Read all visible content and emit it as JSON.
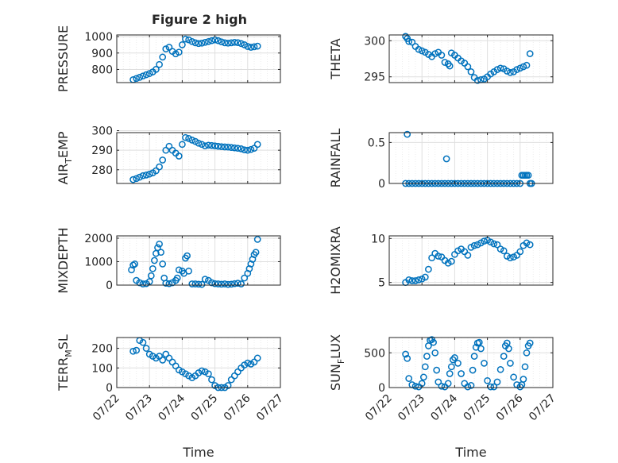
{
  "figure_title": "Figure 2 high",
  "marker_color": "#0072BD",
  "chart_data": [
    {
      "type": "scatter",
      "ylabel": "PRESSURE",
      "xlabel": "",
      "title": "Figure 2 high",
      "ylim": [
        720,
        1010
      ],
      "yticks": [
        800,
        900,
        1000
      ],
      "xlim": [
        0,
        5
      ],
      "xticks": [
        "07/22",
        "07/23",
        "07/24",
        "07/25",
        "07/26",
        "07/27"
      ],
      "xtick_labels_shown": false,
      "grid": true,
      "x": [
        0.5,
        0.6,
        0.7,
        0.8,
        0.9,
        1.0,
        1.1,
        1.2,
        1.3,
        1.4,
        1.5,
        1.6,
        1.7,
        1.8,
        1.9,
        2.0,
        2.1,
        2.2,
        2.3,
        2.4,
        2.5,
        2.6,
        2.7,
        2.8,
        2.9,
        3.0,
        3.1,
        3.2,
        3.3,
        3.4,
        3.5,
        3.6,
        3.7,
        3.8,
        3.9,
        4.0,
        4.1,
        4.2,
        4.3
      ],
      "y": [
        738,
        745,
        752,
        760,
        768,
        775,
        785,
        800,
        830,
        875,
        925,
        935,
        910,
        895,
        905,
        950,
        985,
        980,
        970,
        962,
        958,
        960,
        965,
        970,
        975,
        980,
        975,
        968,
        962,
        960,
        962,
        965,
        963,
        958,
        950,
        940,
        935,
        938,
        942
      ]
    },
    {
      "type": "scatter",
      "ylabel": "THETA",
      "xlabel": "",
      "ylim": [
        294.2,
        300.8
      ],
      "yticks": [
        295,
        300
      ],
      "xlim": [
        0,
        5
      ],
      "xticks": [
        "07/22",
        "07/23",
        "07/24",
        "07/25",
        "07/26",
        "07/27"
      ],
      "xtick_labels_shown": false,
      "grid": true,
      "x": [
        0.5,
        0.55,
        0.6,
        0.7,
        0.8,
        0.9,
        1.0,
        1.1,
        1.2,
        1.3,
        1.4,
        1.5,
        1.6,
        1.7,
        1.8,
        1.85,
        1.9,
        2.0,
        2.1,
        2.2,
        2.3,
        2.4,
        2.5,
        2.6,
        2.7,
        2.8,
        2.9,
        3.0,
        3.1,
        3.2,
        3.3,
        3.4,
        3.5,
        3.6,
        3.7,
        3.8,
        3.9,
        4.0,
        4.1,
        4.2,
        4.3
      ],
      "y": [
        300.6,
        300.3,
        299.9,
        299.8,
        299.2,
        298.8,
        298.6,
        298.4,
        298.1,
        297.8,
        298.2,
        298.4,
        298.0,
        297.0,
        296.8,
        296.5,
        298.3,
        298.0,
        297.6,
        297.2,
        296.9,
        296.4,
        295.7,
        294.9,
        294.5,
        294.6,
        294.7,
        295.0,
        295.4,
        295.7,
        296.0,
        296.2,
        296.1,
        295.8,
        295.6,
        295.7,
        296.0,
        296.2,
        296.4,
        296.6,
        298.2
      ]
    },
    {
      "type": "scatter",
      "ylabel": "AIR_TEMP",
      "xlabel": "",
      "ylim": [
        273,
        299
      ],
      "yticks": [
        280,
        290,
        300
      ],
      "xlim": [
        0,
        5
      ],
      "xticks": [
        "07/22",
        "07/23",
        "07/24",
        "07/25",
        "07/26",
        "07/27"
      ],
      "xtick_labels_shown": false,
      "grid": true,
      "x": [
        0.5,
        0.6,
        0.7,
        0.8,
        0.9,
        1.0,
        1.1,
        1.2,
        1.3,
        1.4,
        1.5,
        1.6,
        1.7,
        1.8,
        1.9,
        2.0,
        2.1,
        2.2,
        2.3,
        2.4,
        2.5,
        2.6,
        2.7,
        2.8,
        2.9,
        3.0,
        3.1,
        3.2,
        3.3,
        3.4,
        3.5,
        3.6,
        3.7,
        3.8,
        3.9,
        4.0,
        4.1,
        4.2,
        4.3
      ],
      "y": [
        275,
        275.5,
        276.2,
        277,
        277.3,
        277.8,
        278.4,
        279.5,
        281.5,
        285,
        290,
        292,
        290,
        288.5,
        287,
        293,
        296.5,
        296,
        295.2,
        294.5,
        293.6,
        293,
        292.2,
        292.6,
        292.4,
        292.2,
        292,
        291.8,
        291.7,
        291.6,
        291.4,
        291.2,
        291,
        290.7,
        290.2,
        290,
        290.4,
        291,
        293
      ]
    },
    {
      "type": "scatter",
      "ylabel": "RAINFALL",
      "xlabel": "",
      "ylim": [
        0,
        0.62
      ],
      "yticks": [
        0,
        0.5
      ],
      "xlim": [
        0,
        5
      ],
      "xticks": [
        "07/22",
        "07/23",
        "07/24",
        "07/25",
        "07/26",
        "07/27"
      ],
      "xtick_labels_shown": false,
      "grid": true,
      "x": [
        0.5,
        0.6,
        0.7,
        0.8,
        0.9,
        1.0,
        1.1,
        1.2,
        1.3,
        1.4,
        1.5,
        1.6,
        1.7,
        1.8,
        1.9,
        2.0,
        2.1,
        2.2,
        2.3,
        2.4,
        2.5,
        2.6,
        2.7,
        2.8,
        2.9,
        3.0,
        3.1,
        3.2,
        3.3,
        3.4,
        3.5,
        3.6,
        3.7,
        3.8,
        3.9,
        4.0,
        4.05,
        4.1,
        4.15,
        4.2,
        4.25,
        4.3,
        4.35,
        0.55,
        1.75
      ],
      "y": [
        0,
        0,
        0,
        0,
        0,
        0,
        0,
        0,
        0,
        0,
        0,
        0,
        0,
        0,
        0,
        0,
        0,
        0,
        0,
        0,
        0,
        0,
        0,
        0,
        0,
        0,
        0,
        0,
        0,
        0,
        0,
        0,
        0,
        0,
        0,
        0,
        0.1,
        0.1,
        0.1,
        0.1,
        0.1,
        0,
        0,
        0.6,
        0.3
      ]
    },
    {
      "type": "scatter",
      "ylabel": "MIXDEPTH",
      "xlabel": "",
      "ylim": [
        0,
        2100
      ],
      "yticks": [
        0,
        1000,
        2000
      ],
      "xlim": [
        0,
        5
      ],
      "xticks": [
        "07/22",
        "07/23",
        "07/24",
        "07/25",
        "07/26",
        "07/27"
      ],
      "xtick_labels_shown": false,
      "grid": true,
      "x": [
        0.45,
        0.5,
        0.55,
        0.6,
        0.7,
        0.8,
        0.9,
        1.0,
        1.05,
        1.1,
        1.15,
        1.2,
        1.25,
        1.3,
        1.35,
        1.4,
        1.45,
        1.5,
        1.6,
        1.7,
        1.8,
        1.85,
        1.9,
        2.0,
        2.05,
        2.1,
        2.15,
        2.2,
        2.3,
        2.4,
        2.5,
        2.6,
        2.7,
        2.8,
        2.9,
        3.0,
        3.1,
        3.2,
        3.3,
        3.4,
        3.5,
        3.6,
        3.7,
        3.8,
        3.9,
        4.0,
        4.05,
        4.1,
        4.15,
        4.2,
        4.25,
        4.3
      ],
      "y": [
        650,
        850,
        900,
        200,
        100,
        50,
        60,
        150,
        400,
        700,
        1050,
        1350,
        1600,
        1750,
        1400,
        900,
        300,
        80,
        60,
        100,
        200,
        300,
        650,
        600,
        500,
        1150,
        1250,
        600,
        50,
        50,
        40,
        30,
        250,
        200,
        100,
        60,
        50,
        40,
        50,
        30,
        40,
        60,
        80,
        50,
        300,
        500,
        700,
        900,
        1100,
        1300,
        1400,
        1950
      ]
    },
    {
      "type": "scatter",
      "ylabel": "H2OMIXRA",
      "xlabel": "",
      "ylim": [
        4.7,
        10.3
      ],
      "yticks": [
        5,
        10
      ],
      "xlim": [
        0,
        5
      ],
      "xticks": [
        "07/22",
        "07/23",
        "07/24",
        "07/25",
        "07/26",
        "07/27"
      ],
      "xtick_labels_shown": false,
      "grid": true,
      "x": [
        0.5,
        0.6,
        0.7,
        0.8,
        0.9,
        1.0,
        1.1,
        1.2,
        1.3,
        1.4,
        1.5,
        1.6,
        1.7,
        1.8,
        1.9,
        2.0,
        2.1,
        2.2,
        2.3,
        2.4,
        2.5,
        2.6,
        2.7,
        2.8,
        2.9,
        3.0,
        3.1,
        3.2,
        3.3,
        3.4,
        3.5,
        3.6,
        3.7,
        3.8,
        3.9,
        4.0,
        4.1,
        4.2,
        4.3
      ],
      "y": [
        5.0,
        5.3,
        5.2,
        5.2,
        5.3,
        5.4,
        5.6,
        6.5,
        7.8,
        8.3,
        8.0,
        7.9,
        7.5,
        7.2,
        7.4,
        8.2,
        8.6,
        8.8,
        8.5,
        8.1,
        9.0,
        9.2,
        9.3,
        9.5,
        9.7,
        9.8,
        9.6,
        9.4,
        9.3,
        8.8,
        8.6,
        8.0,
        7.8,
        7.9,
        8.1,
        8.5,
        9.2,
        9.5,
        9.3
      ]
    },
    {
      "type": "scatter",
      "ylabel": "TERR_MSL",
      "xlabel": "Time",
      "ylim": [
        0,
        255
      ],
      "yticks": [
        0,
        100,
        200
      ],
      "xlim": [
        0,
        5
      ],
      "xticks": [
        "07/22",
        "07/23",
        "07/24",
        "07/25",
        "07/26",
        "07/27"
      ],
      "xtick_labels_shown": true,
      "grid": true,
      "x": [
        0.5,
        0.6,
        0.7,
        0.8,
        0.9,
        1.0,
        1.1,
        1.2,
        1.3,
        1.4,
        1.5,
        1.6,
        1.7,
        1.8,
        1.9,
        2.0,
        2.1,
        2.2,
        2.3,
        2.4,
        2.5,
        2.6,
        2.7,
        2.8,
        2.9,
        3.0,
        3.1,
        3.2,
        3.3,
        3.4,
        3.5,
        3.6,
        3.7,
        3.8,
        3.9,
        4.0,
        4.1,
        4.2,
        4.3
      ],
      "y": [
        185,
        190,
        240,
        230,
        200,
        170,
        160,
        150,
        160,
        140,
        170,
        150,
        130,
        110,
        90,
        80,
        70,
        60,
        50,
        60,
        75,
        85,
        80,
        70,
        40,
        10,
        0,
        0,
        0,
        10,
        40,
        60,
        80,
        100,
        115,
        125,
        120,
        130,
        150
      ]
    },
    {
      "type": "scatter",
      "ylabel": "SUN_FLUX",
      "xlabel": "Time",
      "ylim": [
        0,
        720
      ],
      "yticks": [
        0,
        500
      ],
      "xlim": [
        0,
        5
      ],
      "xticks": [
        "07/22",
        "07/23",
        "07/24",
        "07/25",
        "07/26",
        "07/27"
      ],
      "xtick_labels_shown": true,
      "grid": true,
      "x": [
        0.5,
        0.55,
        0.6,
        0.7,
        0.8,
        0.9,
        1.0,
        1.05,
        1.1,
        1.15,
        1.2,
        1.25,
        1.3,
        1.35,
        1.4,
        1.45,
        1.5,
        1.6,
        1.7,
        1.8,
        1.85,
        1.9,
        1.95,
        2.0,
        2.1,
        2.2,
        2.3,
        2.4,
        2.5,
        2.55,
        2.6,
        2.65,
        2.7,
        2.75,
        2.8,
        2.9,
        3.0,
        3.1,
        3.2,
        3.3,
        3.4,
        3.5,
        3.55,
        3.6,
        3.65,
        3.7,
        3.8,
        3.9,
        4.0,
        4.05,
        4.1,
        4.15,
        4.2,
        4.25,
        4.3
      ],
      "y": [
        480,
        420,
        130,
        40,
        20,
        10,
        60,
        150,
        300,
        450,
        600,
        680,
        690,
        650,
        500,
        250,
        80,
        20,
        10,
        60,
        200,
        300,
        400,
        430,
        350,
        200,
        60,
        10,
        30,
        250,
        450,
        580,
        640,
        650,
        560,
        350,
        100,
        10,
        10,
        80,
        260,
        450,
        600,
        640,
        560,
        350,
        150,
        40,
        10,
        40,
        120,
        300,
        500,
        600,
        640
      ]
    }
  ]
}
